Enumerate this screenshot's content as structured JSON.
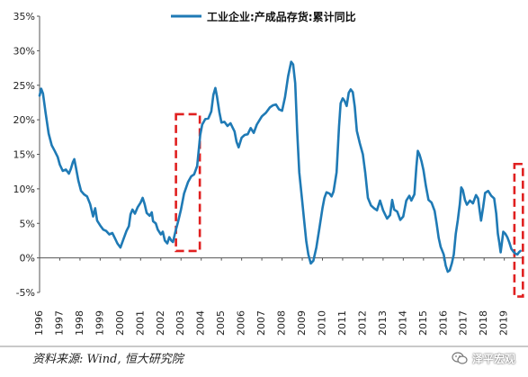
{
  "chart_data": {
    "type": "line",
    "legend": {
      "label": "工业企业:产成品存货:累计同比",
      "placement": "top"
    },
    "y_ticks": [
      "35%",
      "30%",
      "25%",
      "20%",
      "15%",
      "10%",
      "5%",
      "0%",
      "-5%"
    ],
    "x_ticks": [
      "1996",
      "1997",
      "1998",
      "1999",
      "2000",
      "2001",
      "2002",
      "2003",
      "2004",
      "2005",
      "2006",
      "2007",
      "2008",
      "2009",
      "2010",
      "2011",
      "2012",
      "2013",
      "2014",
      "2015",
      "2016",
      "2017",
      "2018",
      "2019"
    ],
    "ylim": [
      -5,
      35
    ],
    "xlim": [
      1996,
      2019.95
    ],
    "grid": false,
    "line_color": "#1f7ab5",
    "highlight_color": "#e02020",
    "series": [
      {
        "points": [
          [
            1996.0,
            23.5
          ],
          [
            1996.08,
            24.5
          ],
          [
            1996.17,
            23.8
          ],
          [
            1996.3,
            21.0
          ],
          [
            1996.45,
            18.0
          ],
          [
            1996.6,
            16.3
          ],
          [
            1996.75,
            15.5
          ],
          [
            1996.9,
            14.6
          ],
          [
            1997.0,
            13.5
          ],
          [
            1997.15,
            12.6
          ],
          [
            1997.3,
            12.8
          ],
          [
            1997.45,
            12.2
          ],
          [
            1997.55,
            12.9
          ],
          [
            1997.65,
            13.9
          ],
          [
            1997.72,
            14.3
          ],
          [
            1997.8,
            13.1
          ],
          [
            1997.92,
            11.2
          ],
          [
            1998.05,
            9.7
          ],
          [
            1998.2,
            9.2
          ],
          [
            1998.35,
            8.9
          ],
          [
            1998.5,
            7.8
          ],
          [
            1998.65,
            6.0
          ],
          [
            1998.75,
            7.2
          ],
          [
            1998.85,
            5.4
          ],
          [
            1999.0,
            4.7
          ],
          [
            1999.15,
            4.1
          ],
          [
            1999.3,
            3.9
          ],
          [
            1999.45,
            3.4
          ],
          [
            1999.6,
            3.6
          ],
          [
            1999.72,
            2.9
          ],
          [
            1999.85,
            2.1
          ],
          [
            2000.0,
            1.5
          ],
          [
            2000.15,
            2.7
          ],
          [
            2000.3,
            3.9
          ],
          [
            2000.42,
            4.6
          ],
          [
            2000.5,
            6.3
          ],
          [
            2000.6,
            7.0
          ],
          [
            2000.72,
            6.4
          ],
          [
            2000.85,
            7.3
          ],
          [
            2001.0,
            8.0
          ],
          [
            2001.1,
            8.7
          ],
          [
            2001.2,
            7.8
          ],
          [
            2001.3,
            6.5
          ],
          [
            2001.45,
            6.1
          ],
          [
            2001.55,
            6.6
          ],
          [
            2001.62,
            5.3
          ],
          [
            2001.75,
            5.0
          ],
          [
            2001.85,
            4.1
          ],
          [
            2002.0,
            3.4
          ],
          [
            2002.1,
            3.8
          ],
          [
            2002.2,
            2.5
          ],
          [
            2002.32,
            2.1
          ],
          [
            2002.42,
            3.0
          ],
          [
            2002.52,
            2.5
          ],
          [
            2002.6,
            2.3
          ],
          [
            2002.72,
            3.8
          ],
          [
            2002.85,
            5.2
          ],
          [
            2003.0,
            7.0
          ],
          [
            2003.15,
            9.3
          ],
          [
            2003.35,
            11.0
          ],
          [
            2003.5,
            11.8
          ],
          [
            2003.65,
            12.1
          ],
          [
            2003.8,
            13.3
          ],
          [
            2003.95,
            17.8
          ],
          [
            2004.05,
            19.3
          ],
          [
            2004.2,
            20.1
          ],
          [
            2004.35,
            20.2
          ],
          [
            2004.5,
            21.2
          ],
          [
            2004.6,
            23.6
          ],
          [
            2004.7,
            24.6
          ],
          [
            2004.78,
            23.4
          ],
          [
            2004.9,
            21.1
          ],
          [
            2005.0,
            19.6
          ],
          [
            2005.15,
            19.7
          ],
          [
            2005.3,
            19.1
          ],
          [
            2005.45,
            19.5
          ],
          [
            2005.55,
            18.9
          ],
          [
            2005.65,
            18.3
          ],
          [
            2005.75,
            16.8
          ],
          [
            2005.85,
            16.0
          ],
          [
            2006.0,
            17.4
          ],
          [
            2006.15,
            17.8
          ],
          [
            2006.3,
            17.9
          ],
          [
            2006.45,
            18.8
          ],
          [
            2006.6,
            18.1
          ],
          [
            2006.75,
            19.3
          ],
          [
            2007.0,
            20.5
          ],
          [
            2007.2,
            21.0
          ],
          [
            2007.4,
            21.8
          ],
          [
            2007.55,
            22.1
          ],
          [
            2007.7,
            22.2
          ],
          [
            2007.85,
            21.5
          ],
          [
            2008.0,
            21.3
          ],
          [
            2008.15,
            23.3
          ],
          [
            2008.3,
            26.3
          ],
          [
            2008.45,
            28.4
          ],
          [
            2008.55,
            28.0
          ],
          [
            2008.65,
            25.3
          ],
          [
            2008.75,
            18.3
          ],
          [
            2008.85,
            12.4
          ],
          [
            2009.0,
            8.2
          ],
          [
            2009.1,
            5.2
          ],
          [
            2009.2,
            2.4
          ],
          [
            2009.3,
            0.5
          ],
          [
            2009.42,
            -0.8
          ],
          [
            2009.55,
            -0.4
          ],
          [
            2009.7,
            1.5
          ],
          [
            2009.85,
            4.3
          ],
          [
            2010.0,
            7.2
          ],
          [
            2010.1,
            8.7
          ],
          [
            2010.2,
            9.5
          ],
          [
            2010.35,
            9.3
          ],
          [
            2010.45,
            8.9
          ],
          [
            2010.55,
            9.6
          ],
          [
            2010.7,
            12.4
          ],
          [
            2010.82,
            19.0
          ],
          [
            2010.9,
            22.4
          ],
          [
            2011.0,
            23.1
          ],
          [
            2011.1,
            22.7
          ],
          [
            2011.2,
            22.0
          ],
          [
            2011.3,
            23.9
          ],
          [
            2011.4,
            24.4
          ],
          [
            2011.5,
            24.0
          ],
          [
            2011.6,
            21.9
          ],
          [
            2011.7,
            18.4
          ],
          [
            2011.85,
            16.6
          ],
          [
            2012.0,
            15.0
          ],
          [
            2012.12,
            12.3
          ],
          [
            2012.25,
            8.7
          ],
          [
            2012.4,
            7.6
          ],
          [
            2012.55,
            7.2
          ],
          [
            2012.7,
            6.9
          ],
          [
            2012.85,
            8.3
          ],
          [
            2013.0,
            6.9
          ],
          [
            2013.1,
            6.3
          ],
          [
            2013.2,
            5.7
          ],
          [
            2013.35,
            6.2
          ],
          [
            2013.45,
            8.4
          ],
          [
            2013.55,
            7.0
          ],
          [
            2013.7,
            6.7
          ],
          [
            2013.85,
            5.5
          ],
          [
            2014.0,
            6.0
          ],
          [
            2014.15,
            8.3
          ],
          [
            2014.3,
            9.0
          ],
          [
            2014.4,
            8.3
          ],
          [
            2014.55,
            9.2
          ],
          [
            2014.65,
            13.2
          ],
          [
            2014.72,
            15.5
          ],
          [
            2014.8,
            15.0
          ],
          [
            2014.9,
            14.0
          ],
          [
            2015.0,
            12.7
          ],
          [
            2015.12,
            10.4
          ],
          [
            2015.25,
            8.4
          ],
          [
            2015.4,
            8.0
          ],
          [
            2015.55,
            6.8
          ],
          [
            2015.65,
            5.0
          ],
          [
            2015.75,
            2.9
          ],
          [
            2015.85,
            1.6
          ],
          [
            2016.0,
            0.5
          ],
          [
            2016.1,
            -1.1
          ],
          [
            2016.2,
            -2.0
          ],
          [
            2016.3,
            -1.8
          ],
          [
            2016.4,
            -0.8
          ],
          [
            2016.5,
            0.5
          ],
          [
            2016.6,
            3.5
          ],
          [
            2016.7,
            5.5
          ],
          [
            2016.8,
            7.8
          ],
          [
            2016.87,
            10.2
          ],
          [
            2016.95,
            9.8
          ],
          [
            2017.05,
            8.4
          ],
          [
            2017.15,
            7.7
          ],
          [
            2017.3,
            8.3
          ],
          [
            2017.45,
            7.9
          ],
          [
            2017.6,
            9.1
          ],
          [
            2017.7,
            8.6
          ],
          [
            2017.78,
            6.8
          ],
          [
            2017.85,
            5.4
          ],
          [
            2017.95,
            7.3
          ],
          [
            2018.05,
            9.4
          ],
          [
            2018.2,
            9.7
          ],
          [
            2018.35,
            9.0
          ],
          [
            2018.5,
            8.6
          ],
          [
            2018.6,
            6.4
          ],
          [
            2018.68,
            3.5
          ],
          [
            2018.75,
            2.3
          ],
          [
            2018.82,
            0.8
          ],
          [
            2018.88,
            2.2
          ],
          [
            2018.95,
            3.8
          ],
          [
            2019.05,
            3.5
          ],
          [
            2019.15,
            3.0
          ],
          [
            2019.25,
            2.2
          ],
          [
            2019.35,
            1.3
          ],
          [
            2019.45,
            0.9
          ],
          [
            2019.55,
            0.6
          ],
          [
            2019.65,
            0.5
          ],
          [
            2019.72,
            0.8
          ],
          [
            2019.8,
            1.0
          ]
        ]
      }
    ],
    "highlights": [
      {
        "x_range": [
          2002.75,
          2003.93
        ],
        "y_range": [
          1.0,
          20.8
        ]
      },
      {
        "x_range": [
          2019.5,
          2019.92
        ],
        "y_range": [
          -5.6,
          13.6
        ]
      }
    ]
  },
  "footer": {
    "source": "资料来源: Wind, 恒大研究院",
    "watermark": "泽平宏观",
    "watermark_icon": "wechat-chat-icon"
  }
}
